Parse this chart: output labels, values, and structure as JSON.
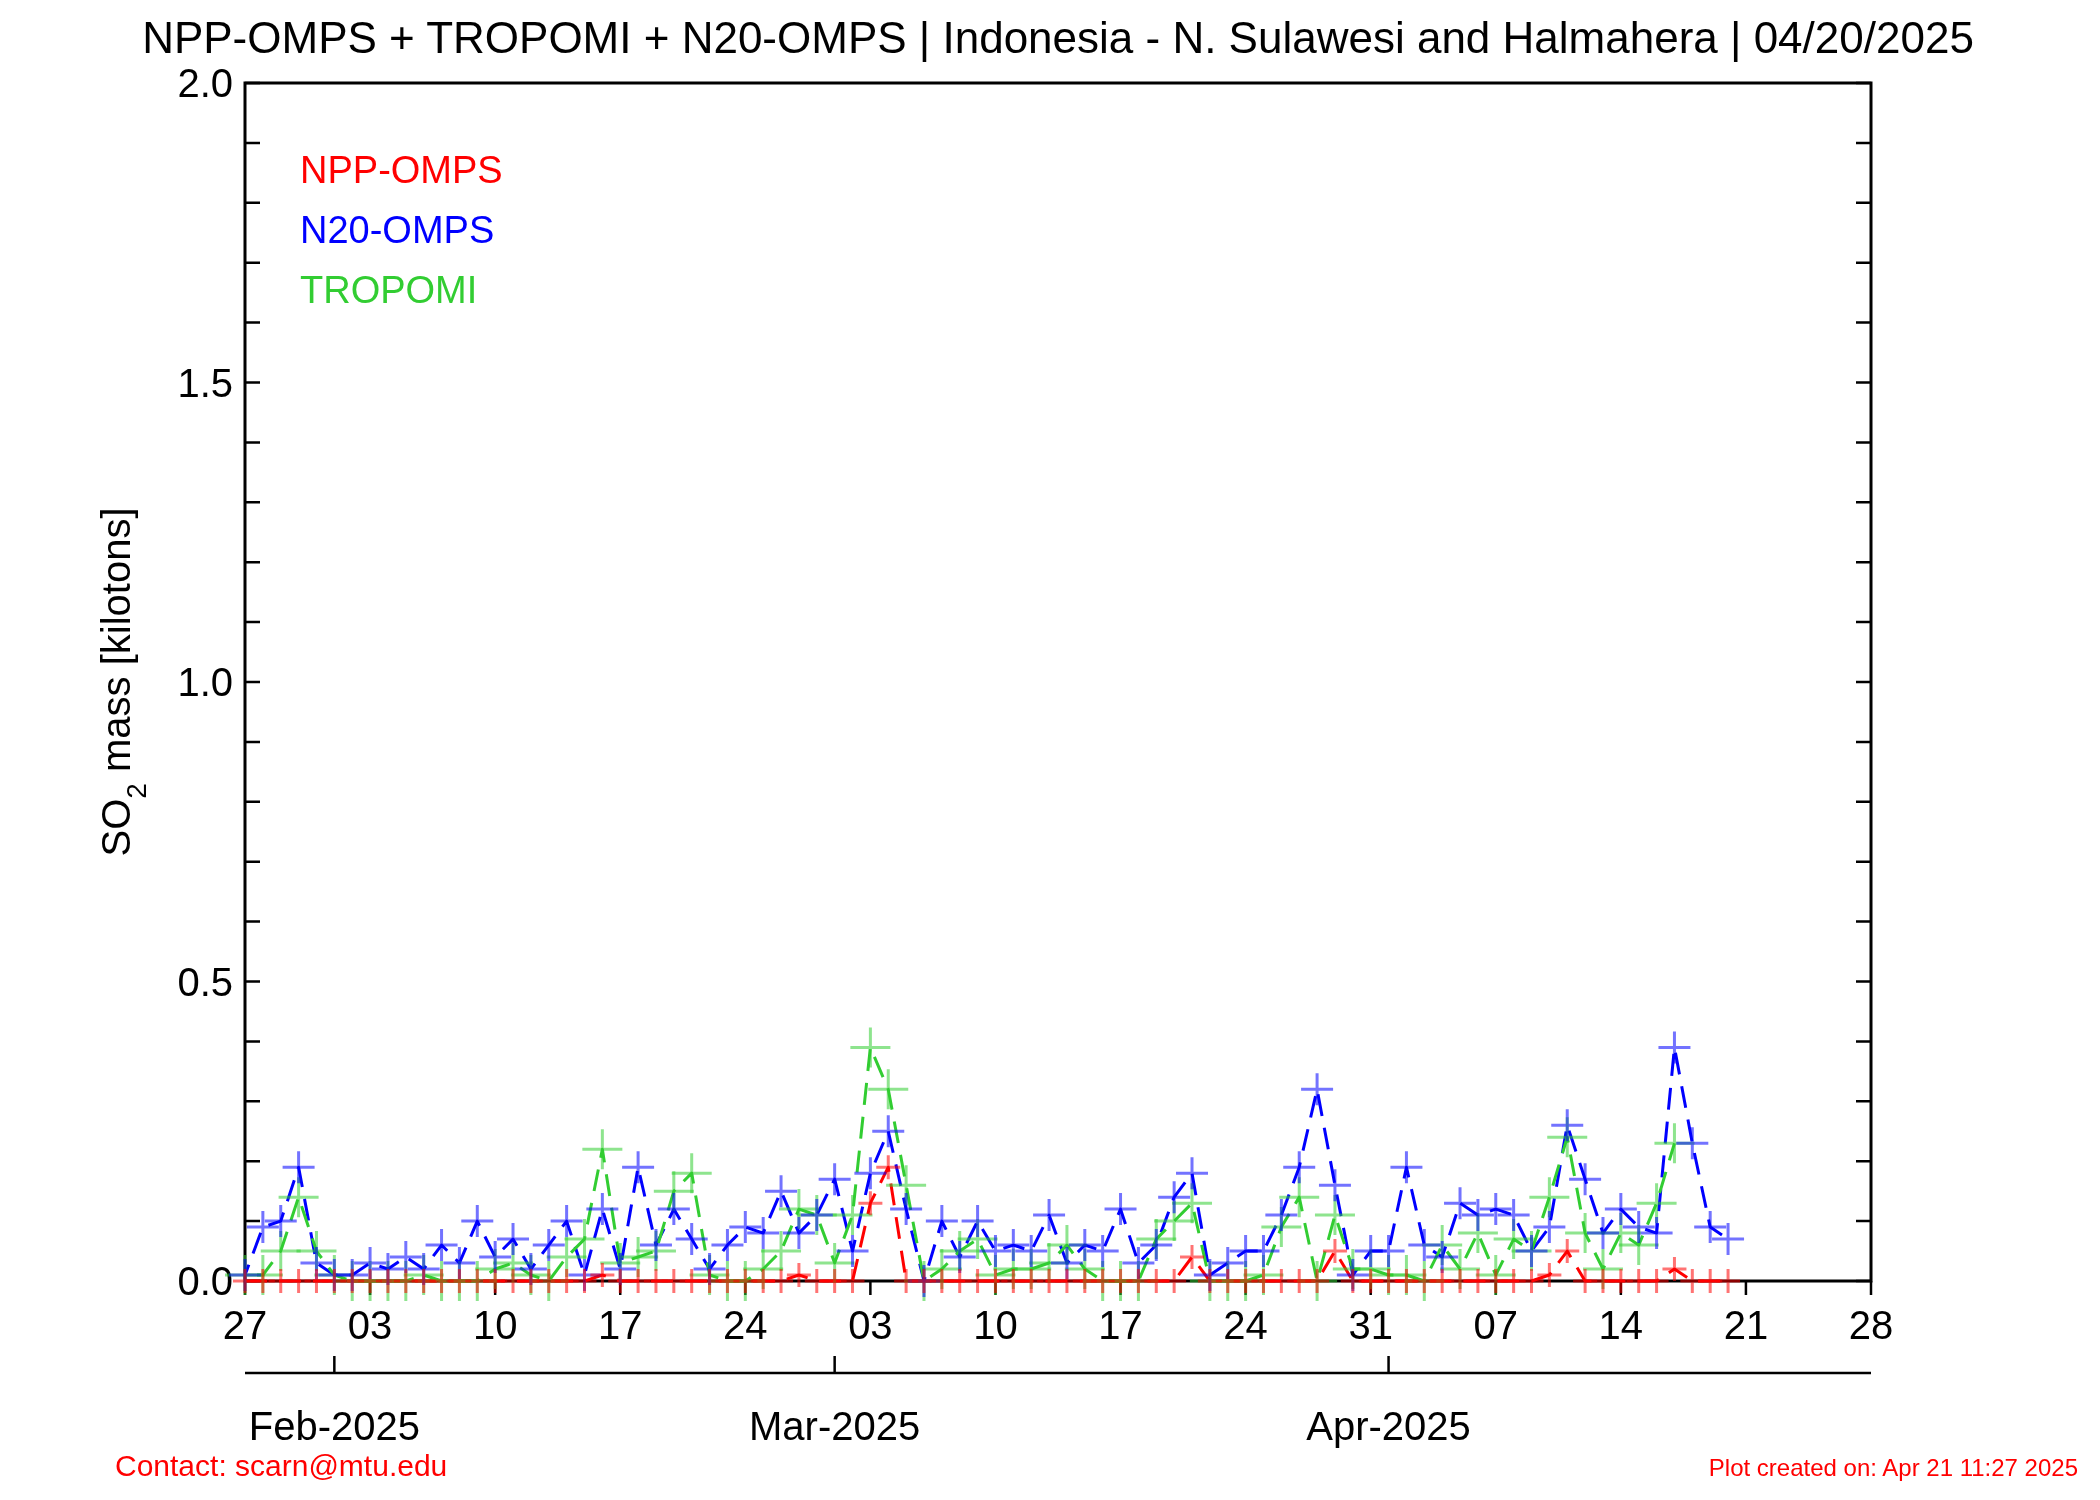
{
  "chart_data": {
    "type": "line",
    "title": "NPP-OMPS + TROPOMI + N20-OMPS | Indonesia - N. Sulawesi and Halmahera | 04/20/2025",
    "ylabel": "SO$_{2}$ mass [kilotons]",
    "marker": "cross",
    "line_style": "dashed",
    "legend": "top left",
    "grid": false,
    "x": [
      "2025-01-27",
      "2025-01-28",
      "2025-01-29",
      "2025-01-30",
      "2025-01-31",
      "2025-02-01",
      "2025-02-02",
      "2025-02-03",
      "2025-02-04",
      "2025-02-05",
      "2025-02-06",
      "2025-02-07",
      "2025-02-08",
      "2025-02-09",
      "2025-02-10",
      "2025-02-11",
      "2025-02-12",
      "2025-02-13",
      "2025-02-14",
      "2025-02-15",
      "2025-02-16",
      "2025-02-17",
      "2025-02-18",
      "2025-02-19",
      "2025-02-20",
      "2025-02-21",
      "2025-02-22",
      "2025-02-23",
      "2025-02-24",
      "2025-02-25",
      "2025-02-26",
      "2025-02-27",
      "2025-02-28",
      "2025-03-01",
      "2025-03-02",
      "2025-03-03",
      "2025-03-04",
      "2025-03-05",
      "2025-03-06",
      "2025-03-07",
      "2025-03-08",
      "2025-03-09",
      "2025-03-10",
      "2025-03-11",
      "2025-03-12",
      "2025-03-13",
      "2025-03-14",
      "2025-03-15",
      "2025-03-16",
      "2025-03-17",
      "2025-03-18",
      "2025-03-19",
      "2025-03-20",
      "2025-03-21",
      "2025-03-22",
      "2025-03-23",
      "2025-03-24",
      "2025-03-25",
      "2025-03-26",
      "2025-03-27",
      "2025-03-28",
      "2025-03-29",
      "2025-03-30",
      "2025-03-31",
      "2025-04-01",
      "2025-04-02",
      "2025-04-03",
      "2025-04-04",
      "2025-04-05",
      "2025-04-06",
      "2025-04-07",
      "2025-04-08",
      "2025-04-09",
      "2025-04-10",
      "2025-04-11",
      "2025-04-12",
      "2025-04-13",
      "2025-04-14",
      "2025-04-15",
      "2025-04-16",
      "2025-04-17",
      "2025-04-18",
      "2025-04-19",
      "2025-04-20"
    ],
    "series": [
      {
        "name": "NPP-OMPS",
        "color": "#ff0000",
        "values": [
          0,
          0,
          0,
          0,
          0,
          0,
          0,
          0,
          0,
          0,
          0,
          0,
          0,
          0,
          0,
          0,
          0,
          0,
          0,
          0,
          0.01,
          0,
          0,
          0,
          0,
          0,
          0,
          0,
          0,
          0,
          0,
          0.01,
          0,
          0,
          0,
          0.13,
          0.19,
          0,
          0,
          0,
          0,
          0,
          0,
          0,
          0,
          0,
          0,
          0,
          0,
          0,
          0,
          0,
          0,
          0.04,
          0,
          0,
          0,
          0,
          0,
          0,
          0,
          0.05,
          0,
          0,
          0,
          0,
          0,
          0,
          0,
          0,
          0,
          0,
          0,
          0.01,
          0.05,
          0,
          0,
          0,
          0,
          0,
          0.02,
          0,
          0,
          0
        ]
      },
      {
        "name": "N20-OMPS",
        "color": "#0000ff",
        "values": [
          0.01,
          0.09,
          0.1,
          0.19,
          0.03,
          0.01,
          0.01,
          0.03,
          0.02,
          0.04,
          0.02,
          0.06,
          0.03,
          0.1,
          0.04,
          0.07,
          0.02,
          0.06,
          0.1,
          0.01,
          0.12,
          0.02,
          0.19,
          0.06,
          0.12,
          0.07,
          0.02,
          0.06,
          0.09,
          0.08,
          0.15,
          0.08,
          0.11,
          0.17,
          0.05,
          0.18,
          0.25,
          0.12,
          0,
          0.1,
          0.04,
          0.1,
          0.05,
          0.06,
          0.05,
          0.11,
          0.03,
          0.06,
          0.05,
          0.12,
          0.03,
          0.06,
          0.14,
          0.18,
          0.01,
          0.03,
          0.05,
          0.05,
          0.11,
          0.19,
          0.32,
          0.16,
          0.01,
          0.05,
          0.05,
          0.19,
          0.06,
          0.04,
          0.13,
          0.11,
          0.12,
          0.11,
          0.05,
          0.09,
          0.26,
          0.17,
          0.08,
          0.12,
          0.09,
          0.08,
          0.39,
          0.23,
          0.09,
          0.07
        ]
      },
      {
        "name": "TROPOMI",
        "color": "#32cd32",
        "values": [
          0.01,
          0.01,
          0.05,
          0.14,
          0.05,
          0.01,
          0,
          0,
          0,
          0,
          0.01,
          0,
          0,
          0,
          0.02,
          0.03,
          0.01,
          0,
          0.04,
          0.07,
          0.22,
          0.03,
          0.04,
          0.05,
          0.15,
          0.18,
          0.01,
          0,
          0,
          0.02,
          0.05,
          0.12,
          0.11,
          0.03,
          0.11,
          0.39,
          0.32,
          0.16,
          0,
          0.02,
          0.05,
          0.07,
          0.01,
          0.02,
          0.02,
          0.03,
          0.06,
          0.02,
          0,
          0,
          0,
          0.07,
          0.1,
          0.13,
          0,
          0,
          0,
          0.01,
          0.09,
          0.14,
          0,
          0.11,
          0.02,
          0.02,
          0.01,
          0.01,
          0,
          0.06,
          0.02,
          0.08,
          0.01,
          0.07,
          0.05,
          0.14,
          0.24,
          0.08,
          0.02,
          0.08,
          0.06,
          0.13,
          0.23,
          null,
          null,
          null
        ]
      }
    ],
    "xlim": [
      "2025-01-27",
      "2025-04-28"
    ],
    "xticks": [
      {
        "value": "2025-01-27",
        "label": "27"
      },
      {
        "value": "2025-02-03",
        "label": "03"
      },
      {
        "value": "2025-02-10",
        "label": "10"
      },
      {
        "value": "2025-02-17",
        "label": "17"
      },
      {
        "value": "2025-02-24",
        "label": "24"
      },
      {
        "value": "2025-03-03",
        "label": "03"
      },
      {
        "value": "2025-03-10",
        "label": "10"
      },
      {
        "value": "2025-03-17",
        "label": "17"
      },
      {
        "value": "2025-03-24",
        "label": "24"
      },
      {
        "value": "2025-03-31",
        "label": "31"
      },
      {
        "value": "2025-04-07",
        "label": "07"
      },
      {
        "value": "2025-04-14",
        "label": "14"
      },
      {
        "value": "2025-04-21",
        "label": "21"
      },
      {
        "value": "2025-04-28",
        "label": "28"
      }
    ],
    "ylim": [
      0,
      2
    ],
    "yticks": [
      {
        "value": 0,
        "label": "0.0"
      },
      {
        "value": 0.1,
        "label": null
      },
      {
        "value": 0.2,
        "label": null
      },
      {
        "value": 0.3,
        "label": null
      },
      {
        "value": 0.4,
        "label": null
      },
      {
        "value": 0.5,
        "label": "0.5"
      },
      {
        "value": 0.6,
        "label": null
      },
      {
        "value": 0.7,
        "label": null
      },
      {
        "value": 0.8,
        "label": null
      },
      {
        "value": 0.9,
        "label": null
      },
      {
        "value": 1,
        "label": "1.0"
      },
      {
        "value": 1.1,
        "label": null
      },
      {
        "value": 1.2,
        "label": null
      },
      {
        "value": 1.3,
        "label": null
      },
      {
        "value": 1.4,
        "label": null
      },
      {
        "value": 1.5,
        "label": "1.5"
      },
      {
        "value": 1.6,
        "label": null
      },
      {
        "value": 1.7,
        "label": null
      },
      {
        "value": 1.8,
        "label": null
      },
      {
        "value": 1.9,
        "label": null
      },
      {
        "value": 2,
        "label": "2.0"
      }
    ],
    "annotations": [
      {
        "text": "Feb-2025",
        "x": "2025-02-01"
      },
      {
        "text": "Mar-2025",
        "x": "2025-03-01"
      },
      {
        "text": "Apr-2025",
        "x": "2025-04-01"
      },
      "Contact: scarn@mtu.edu",
      "Plot created on: Apr 21 11:27 2025"
    ]
  }
}
